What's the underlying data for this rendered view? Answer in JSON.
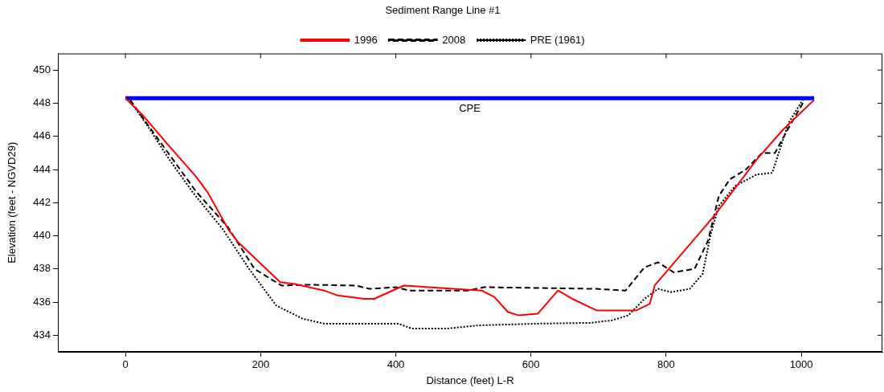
{
  "chart_data": {
    "type": "line",
    "title": "Sediment Range Line #1",
    "xlabel": "Distance (feet) L-R",
    "ylabel": "Elevation (feet - NGVD29)",
    "xlim": [
      -100,
      1120
    ],
    "xticks": [
      0,
      200,
      400,
      600,
      800,
      1000
    ],
    "ylim": [
      433,
      451
    ],
    "yticks": [
      434,
      436,
      438,
      440,
      442,
      444,
      446,
      448,
      450
    ],
    "grid": false,
    "legend": "top",
    "marker": "none",
    "series": [
      {
        "name": "1996",
        "color": "#ff0000",
        "line_style": "solid",
        "x": [
          0,
          25,
          65,
          104,
          122,
          152,
          167,
          229,
          250,
          294,
          314,
          353,
          368,
          412,
          448,
          527,
          546,
          566,
          582,
          610,
          640,
          661,
          697,
          729,
          756,
          776,
          783,
          871,
          934,
          973,
          1019
        ],
        "values": [
          448.3,
          447.3,
          445.4,
          443.6,
          442.6,
          440.4,
          439.6,
          437.2,
          437.1,
          436.7,
          436.4,
          436.2,
          436.2,
          437.0,
          436.9,
          436.7,
          436.3,
          435.4,
          435.2,
          435.3,
          436.7,
          436.2,
          435.5,
          435.5,
          435.5,
          435.9,
          437.0,
          441.2,
          444.6,
          446.4,
          448.2
        ]
      },
      {
        "name": "2008",
        "color": "#000000",
        "line_style": "dashed",
        "x": [
          7,
          33,
          65,
          104,
          152,
          191,
          231,
          270,
          341,
          361,
          400,
          420,
          507,
          531,
          697,
          740,
          768,
          788,
          811,
          842,
          862,
          878,
          894,
          918,
          942,
          961,
          981,
          1005
        ],
        "values": [
          448.2,
          446.7,
          444.9,
          442.7,
          440.5,
          438.0,
          437.0,
          437.05,
          437.0,
          436.8,
          436.9,
          436.7,
          436.7,
          436.9,
          436.8,
          436.7,
          438.1,
          438.4,
          437.8,
          438.0,
          439.7,
          442.4,
          443.4,
          444.0,
          445.0,
          445.0,
          446.5,
          448.2
        ]
      },
      {
        "name": "PRE (1961)",
        "color": "#000000",
        "line_style": "dotted",
        "x": [
          4,
          30,
          65,
          100,
          144,
          183,
          223,
          262,
          294,
          368,
          404,
          424,
          475,
          523,
          610,
          688,
          720,
          744,
          768,
          788,
          807,
          835,
          854,
          866,
          878,
          902,
          934,
          957,
          981,
          1002
        ],
        "values": [
          448.3,
          446.8,
          444.6,
          442.6,
          440.4,
          438.0,
          435.8,
          435.0,
          434.7,
          434.7,
          434.7,
          434.4,
          434.4,
          434.6,
          434.7,
          434.75,
          434.9,
          435.2,
          436.2,
          436.8,
          436.6,
          436.8,
          437.7,
          440.1,
          441.8,
          443.0,
          443.7,
          443.8,
          446.8,
          448.2
        ]
      },
      {
        "name": "CPE",
        "color": "#0000ff",
        "line_style": "solid",
        "x": [
          0,
          1019
        ],
        "values": [
          448.3,
          448.3
        ]
      }
    ]
  }
}
